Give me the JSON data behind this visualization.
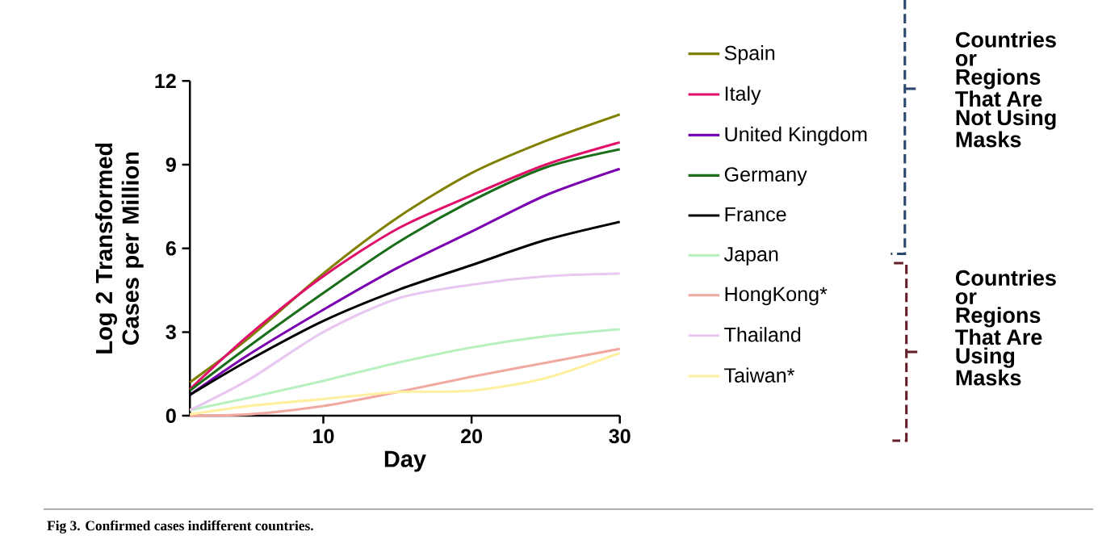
{
  "chart_data": {
    "type": "line",
    "xlabel": "Day",
    "ylabel": "Log 2 Transformed Cases per Million",
    "x": [
      1,
      5,
      10,
      15,
      20,
      25,
      30
    ],
    "series": [
      {
        "name": "Spain",
        "color": "#808000",
        "values": [
          1.2,
          2.8,
          5.1,
          7.1,
          8.7,
          9.85,
          10.8
        ]
      },
      {
        "name": "Italy",
        "color": "#e0106a",
        "values": [
          0.95,
          2.9,
          5.0,
          6.7,
          7.9,
          9.0,
          9.8
        ]
      },
      {
        "name": "United Kingdom",
        "color": "#7a00b0",
        "values": [
          0.75,
          2.2,
          3.8,
          5.3,
          6.6,
          7.9,
          8.85
        ]
      },
      {
        "name": "Germany",
        "color": "#1a6e1a",
        "values": [
          0.9,
          2.5,
          4.4,
          6.2,
          7.7,
          8.9,
          9.55
        ]
      },
      {
        "name": "France",
        "color": "#000000",
        "values": [
          0.75,
          2.0,
          3.4,
          4.5,
          5.4,
          6.3,
          6.95
        ]
      },
      {
        "name": "Japan",
        "color": "#b8f0c0",
        "values": [
          0.2,
          0.65,
          1.25,
          1.9,
          2.45,
          2.85,
          3.1
        ]
      },
      {
        "name": "HongKong*",
        "color": "#f0a8a0",
        "values": [
          0.0,
          0.05,
          0.35,
          0.85,
          1.4,
          1.9,
          2.4
        ]
      },
      {
        "name": "Thailand",
        "color": "#e8c8f0",
        "values": [
          0.2,
          1.3,
          3.0,
          4.2,
          4.7,
          5.0,
          5.1
        ]
      },
      {
        "name": "Taiwan*",
        "color": "#fff0a0",
        "values": [
          0.05,
          0.35,
          0.6,
          0.85,
          0.9,
          1.35,
          2.25
        ]
      }
    ],
    "xlim": [
      1,
      30
    ],
    "xticks": [
      10,
      20,
      30
    ],
    "ylim": [
      0,
      12
    ],
    "yticks": [
      0,
      3,
      6,
      9,
      12
    ],
    "legend": "right",
    "marker": "none",
    "line_style": "solid",
    "annotations": [
      "Fig 3. Confirmed cases indifferent countries.",
      "Countries or Regions That Are Not Using Masks",
      "Countries or Regions That Are Using Masks"
    ]
  }
}
